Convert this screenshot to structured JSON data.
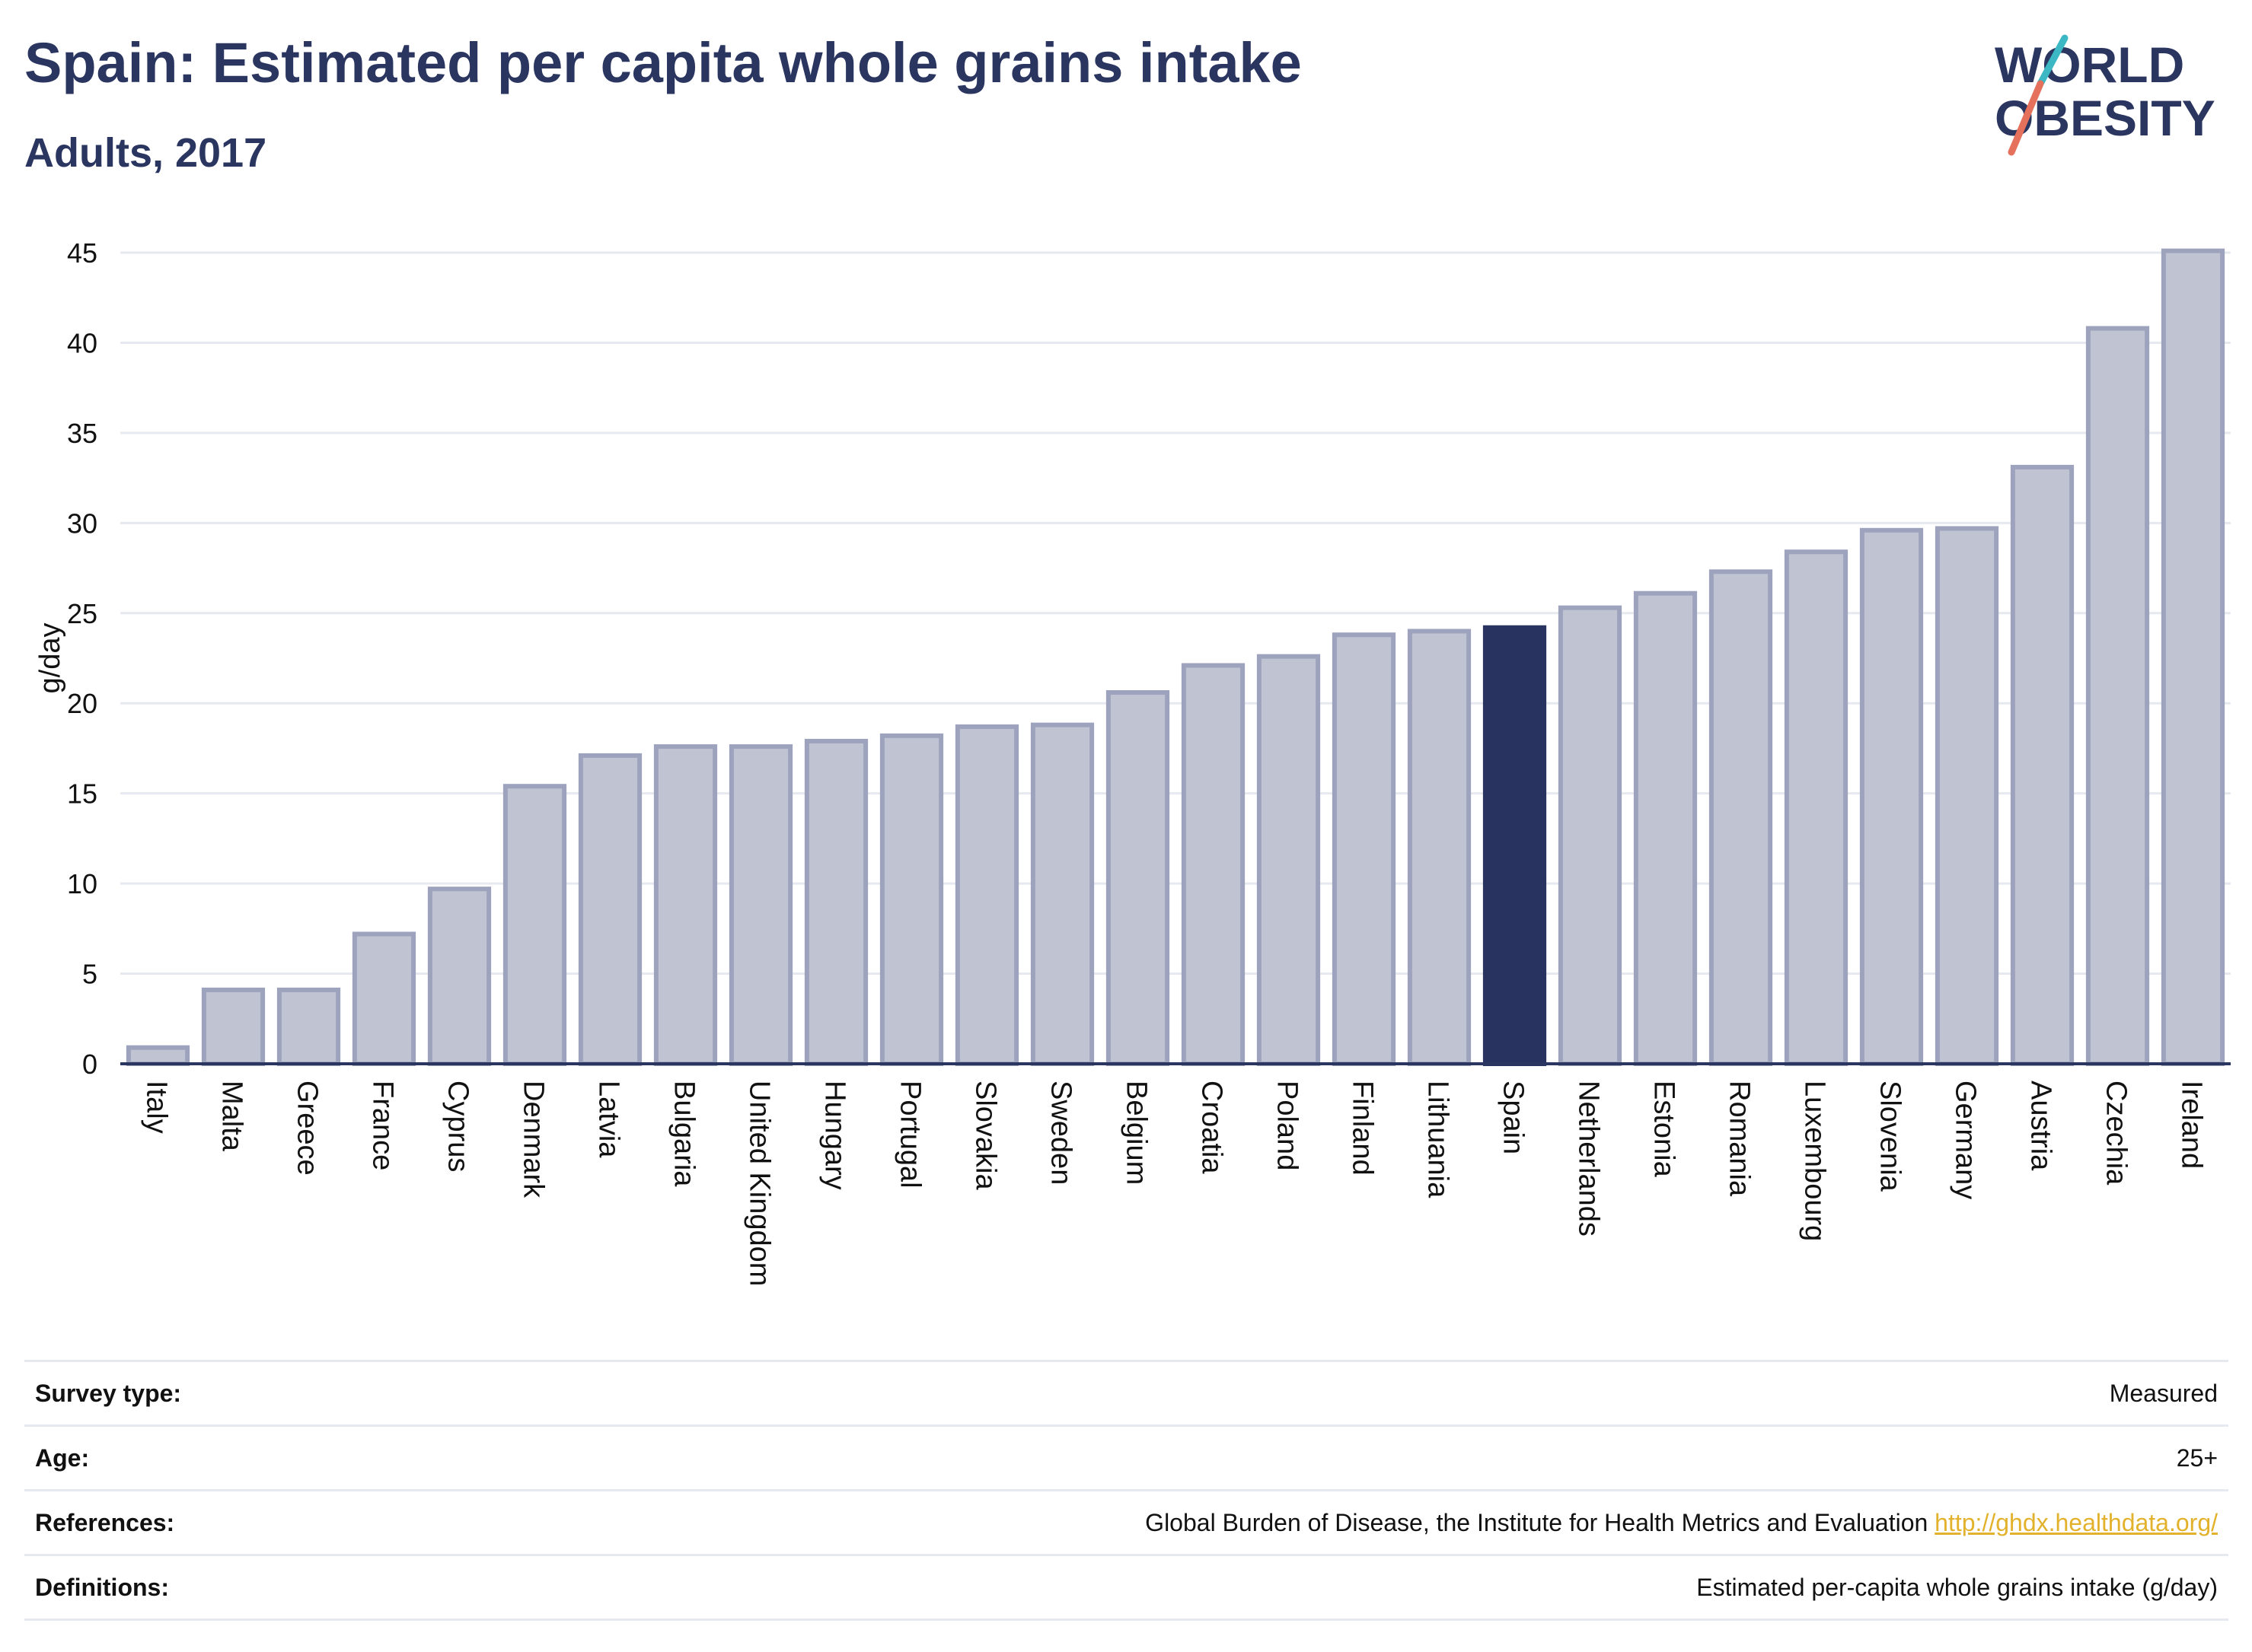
{
  "title": "Spain: Estimated per capita whole grains intake",
  "subtitle": "Adults, 2017",
  "logo": {
    "line1": "WORLD",
    "line2": "OBESITY"
  },
  "colors": {
    "highlight": "#283360",
    "bar_fill": "#bfc3d2",
    "bar_edge": "#9ea3bd",
    "text": "#2a3560",
    "link": "#e3b22c"
  },
  "chart_data": {
    "type": "bar",
    "categories": [
      "Italy",
      "Malta",
      "Greece",
      "France",
      "Cyprus",
      "Denmark",
      "Latvia",
      "Bulgaria",
      "United Kingdom",
      "Hungary",
      "Portugal",
      "Slovakia",
      "Sweden",
      "Belgium",
      "Croatia",
      "Poland",
      "Finland",
      "Lithuania",
      "Spain",
      "Netherlands",
      "Estonia",
      "Romania",
      "Luxembourg",
      "Slovenia",
      "Germany",
      "Austria",
      "Czechia",
      "Ireland"
    ],
    "values": [
      0.9,
      4.1,
      4.1,
      7.2,
      9.7,
      15.4,
      17.1,
      17.6,
      17.6,
      17.9,
      18.2,
      18.7,
      18.8,
      20.6,
      22.1,
      22.6,
      23.8,
      24.0,
      24.2,
      25.3,
      26.1,
      27.3,
      28.4,
      29.6,
      29.7,
      33.1,
      40.8,
      45.1
    ],
    "highlight": "Spain",
    "ylabel": "g/day",
    "ylim": [
      0,
      45
    ],
    "yticks": [
      0,
      5,
      10,
      15,
      20,
      25,
      30,
      35,
      40,
      45
    ],
    "grid": true
  },
  "info": [
    {
      "label": "Survey type:",
      "value": "Measured"
    },
    {
      "label": "Age:",
      "value": "25+"
    },
    {
      "label": "References:",
      "value": "Global Burden of Disease, the Institute for Health Metrics and Evaluation",
      "link": "http://ghdx.healthdata.org/"
    },
    {
      "label": "Definitions:",
      "value": "Estimated per-capita whole grains intake (g/day)"
    }
  ]
}
